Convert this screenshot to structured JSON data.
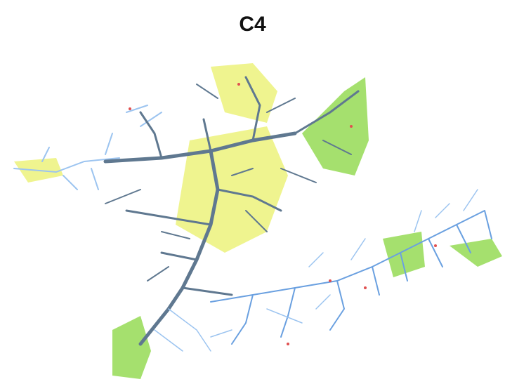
{
  "title": "C4"
}
